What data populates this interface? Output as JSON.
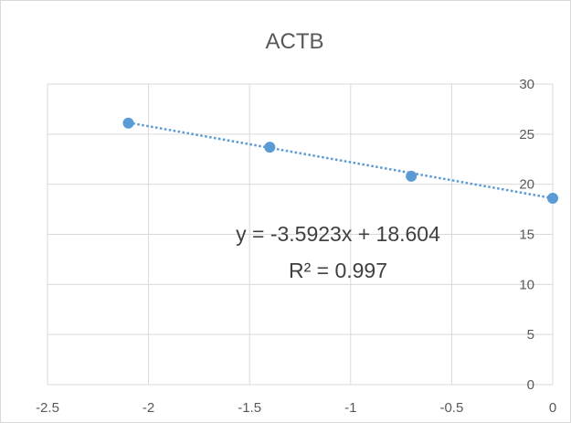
{
  "chart_data": {
    "type": "scatter",
    "title": "ACTB",
    "x": [
      -2.1,
      -1.4,
      -0.7,
      0
    ],
    "y": [
      26.1,
      23.7,
      20.8,
      18.6
    ],
    "xlim": [
      -2.5,
      0
    ],
    "ylim": [
      0,
      30
    ],
    "x_ticks": [
      "-2.5",
      "-2",
      "-1.5",
      "-1",
      "-0.5",
      "0"
    ],
    "y_ticks": [
      "0",
      "5",
      "10",
      "15",
      "20",
      "25",
      "30"
    ],
    "y_axis_side": "right",
    "grid": true,
    "marker_color": "#5B9BD5",
    "trendline": {
      "type": "linear",
      "slope": -3.5923,
      "intercept": 18.604,
      "style": "dotted",
      "color": "#5B9BD5",
      "equation": "y = -3.5923x + 18.604",
      "r_squared": "R² = 0.997"
    }
  }
}
